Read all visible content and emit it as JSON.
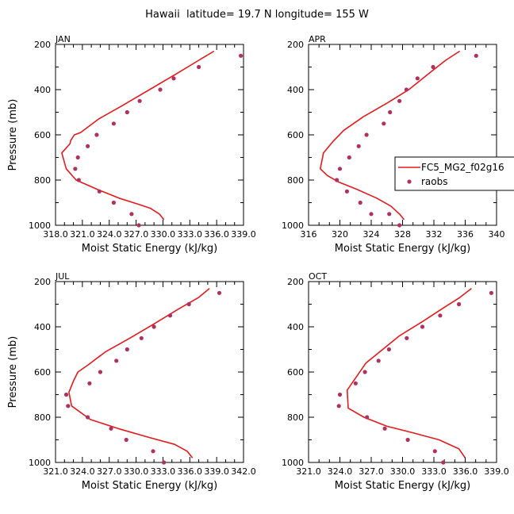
{
  "figure_title": "Hawaii  latitude= 19.7 N longitude= 155 W",
  "colors": {
    "model_line": "#e41a1c",
    "obs_dot": "#b03060",
    "axis": "#000000"
  },
  "legend": {
    "model_label": "FC5_MG2_f02g16",
    "obs_label": "raobs"
  },
  "chart_data": [
    {
      "type": "scatter",
      "panel": "JAN",
      "title": "JAN",
      "xlabel": "Moist Static Energy (kJ/kg)",
      "ylabel": "Pressure (mb)",
      "xlim": [
        318.0,
        339.0
      ],
      "ylim": [
        1000,
        200
      ],
      "xticks": [
        318.0,
        321.0,
        324.0,
        327.0,
        330.0,
        333.0,
        336.0,
        339.0
      ],
      "xtick_labels": [
        "318.0",
        "321.0",
        "324.0",
        "327.0",
        "330.0",
        "333.0",
        "336.0",
        "339.0"
      ],
      "yticks": [
        200,
        400,
        600,
        800,
        1000
      ],
      "ytick_labels": [
        "200",
        "400",
        "600",
        "800",
        "1000"
      ],
      "series": [
        {
          "name": "FC5_MG2_f02g16",
          "kind": "line",
          "x": [
            335.7,
            334.0,
            331.5,
            328.5,
            325.5,
            322.8,
            320.8,
            320.1,
            319.7,
            319.6,
            318.7,
            319.2,
            320.3,
            322.6,
            325.1,
            327.5,
            328.6,
            329.6,
            330.1
          ],
          "y": [
            230,
            270,
            330,
            400,
            470,
            530,
            590,
            600,
            625,
            640,
            680,
            750,
            800,
            840,
            880,
            910,
            925,
            950,
            975
          ]
        },
        {
          "name": "raobs",
          "kind": "scatter",
          "x": [
            338.7,
            334.0,
            331.2,
            329.7,
            327.4,
            326.0,
            324.5,
            322.6,
            321.6,
            320.5,
            320.2,
            320.6,
            322.9,
            324.5,
            326.5,
            327.3
          ],
          "y": [
            250,
            300,
            350,
            400,
            450,
            500,
            550,
            600,
            650,
            700,
            750,
            800,
            850,
            900,
            950,
            1000
          ]
        }
      ]
    },
    {
      "type": "scatter",
      "panel": "APR",
      "title": "APR",
      "xlabel": "Moist Static Energy (kJ/kg)",
      "ylabel": "",
      "xlim": [
        316,
        340
      ],
      "ylim": [
        1000,
        200
      ],
      "xticks": [
        316,
        320,
        324,
        328,
        332,
        336,
        340
      ],
      "xtick_labels": [
        "316",
        "320",
        "324",
        "328",
        "332",
        "336",
        "340"
      ],
      "yticks": [
        200,
        400,
        600,
        800,
        1000
      ],
      "ytick_labels": [
        "200",
        "400",
        "600",
        "800",
        "1000"
      ],
      "series": [
        {
          "name": "FC5_MG2_f02g16",
          "kind": "line",
          "x": [
            335.3,
            333.5,
            331.3,
            328.8,
            326.0,
            323.0,
            320.5,
            319.1,
            317.9,
            317.5,
            318.4,
            319.9,
            322.1,
            324.7,
            326.5,
            327.6,
            328.2
          ],
          "y": [
            230,
            270,
            330,
            400,
            460,
            520,
            580,
            630,
            680,
            750,
            780,
            810,
            840,
            880,
            915,
            950,
            975
          ]
        },
        {
          "name": "raobs",
          "kind": "scatter",
          "x": [
            337.4,
            331.9,
            329.9,
            328.5,
            327.6,
            326.4,
            325.6,
            323.4,
            322.4,
            321.2,
            320.0,
            319.6,
            320.9,
            322.6,
            324.0,
            326.3,
            327.6
          ],
          "y": [
            250,
            300,
            350,
            400,
            450,
            500,
            550,
            600,
            650,
            700,
            750,
            800,
            850,
            900,
            950,
            950,
            1000
          ]
        }
      ]
    },
    {
      "type": "scatter",
      "panel": "JUL",
      "title": "JUL",
      "xlabel": "Moist Static Energy (kJ/kg)",
      "ylabel": "Pressure (mb)",
      "xlim": [
        321.0,
        342.0
      ],
      "ylim": [
        1000,
        200
      ],
      "xticks": [
        321.0,
        324.0,
        327.0,
        330.0,
        333.0,
        336.0,
        339.0,
        342.0
      ],
      "xtick_labels": [
        "321.0",
        "324.0",
        "327.0",
        "330.0",
        "333.0",
        "336.0",
        "339.0",
        "342.0"
      ],
      "yticks": [
        200,
        400,
        600,
        800,
        1000
      ],
      "ytick_labels": [
        "200",
        "400",
        "600",
        "800",
        "1000"
      ],
      "series": [
        {
          "name": "FC5_MG2_f02g16",
          "kind": "line",
          "x": [
            338.2,
            337.0,
            334.8,
            331.9,
            329.3,
            326.6,
            324.6,
            323.5,
            323.0,
            322.5,
            322.8,
            324.9,
            328.0,
            331.5,
            334.3,
            335.7,
            336.3
          ],
          "y": [
            230,
            270,
            320,
            390,
            450,
            510,
            570,
            600,
            640,
            690,
            750,
            810,
            850,
            890,
            920,
            950,
            980
          ]
        },
        {
          "name": "raobs",
          "kind": "scatter",
          "x": [
            339.3,
            335.9,
            333.8,
            332.0,
            330.6,
            329.0,
            327.8,
            326.0,
            324.8,
            322.2,
            322.4,
            324.6,
            327.2,
            328.9,
            331.9,
            333.1
          ],
          "y": [
            250,
            300,
            350,
            400,
            450,
            500,
            550,
            600,
            650,
            700,
            750,
            800,
            850,
            900,
            950,
            1000
          ]
        }
      ]
    },
    {
      "type": "scatter",
      "panel": "OCT",
      "title": "OCT",
      "xlabel": "Moist Static Energy (kJ/kg)",
      "ylabel": "",
      "xlim": [
        321.0,
        339.0
      ],
      "ylim": [
        1000,
        200
      ],
      "xticks": [
        321.0,
        324.0,
        327.0,
        330.0,
        333.0,
        336.0,
        339.0
      ],
      "xtick_labels": [
        "321.0",
        "324.0",
        "327.0",
        "330.0",
        "333.0",
        "336.0",
        "339.0"
      ],
      "yticks": [
        200,
        400,
        600,
        800,
        1000
      ],
      "ytick_labels": [
        "200",
        "400",
        "600",
        "800",
        "1000"
      ],
      "series": [
        {
          "name": "FC5_MG2_f02g16",
          "kind": "line",
          "x": [
            336.6,
            335.5,
            333.8,
            331.8,
            329.7,
            328.1,
            326.5,
            325.6,
            324.7,
            324.8,
            326.3,
            328.5,
            331.1,
            333.5,
            335.4,
            336.0
          ],
          "y": [
            230,
            270,
            320,
            380,
            440,
            500,
            560,
            620,
            680,
            760,
            800,
            840,
            870,
            900,
            940,
            980
          ]
        },
        {
          "name": "raobs",
          "kind": "scatter",
          "x": [
            338.5,
            335.4,
            333.6,
            331.9,
            330.4,
            328.7,
            327.7,
            326.4,
            325.5,
            324.0,
            323.9,
            326.6,
            328.3,
            330.5,
            333.1,
            333.9
          ],
          "y": [
            250,
            300,
            350,
            400,
            450,
            500,
            550,
            600,
            650,
            700,
            750,
            800,
            850,
            900,
            950,
            1000
          ]
        }
      ]
    }
  ]
}
